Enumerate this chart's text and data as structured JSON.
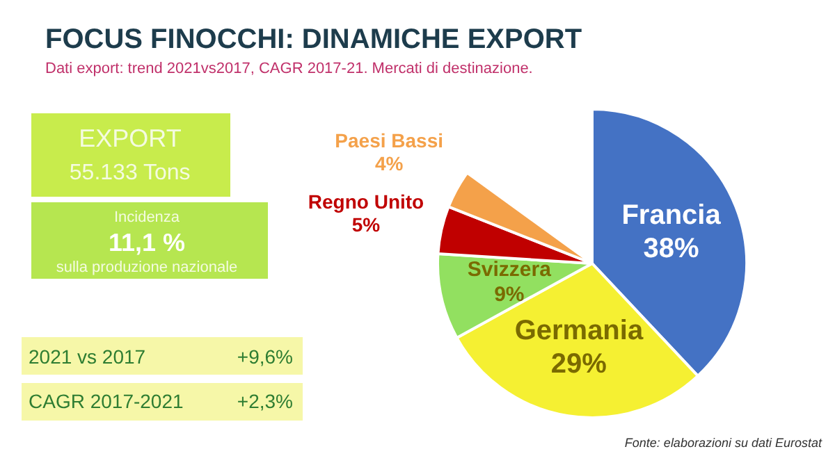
{
  "chart_data": {
    "type": "pie",
    "title": "FOCUS FINOCCHI: DINAMICHE EXPORT",
    "subtitle": "Dati export: trend 2021vs2017, CAGR 2017-21. Mercati di destinazione.",
    "categories": [
      "Francia",
      "Germania",
      "Svizzera",
      "Regno Unito",
      "Paesi Bassi"
    ],
    "values": [
      38,
      29,
      9,
      5,
      4
    ],
    "value_labels": [
      "38%",
      "29%",
      "9%",
      "5%",
      "4%"
    ],
    "colors": [
      "#4472c4",
      "#f5f032",
      "#92e060",
      "#c00000",
      "#f4a14a"
    ],
    "annotations": [
      "EXPORT",
      "55.133 Tons",
      "Incidenza",
      "11,1 %",
      "sulla produzione nazionale",
      "2021 vs 2017",
      "+9,6%",
      "CAGR 2017-2021",
      "+2,3%",
      "Fonte: elaborazioni su dati Eurostat"
    ]
  }
}
